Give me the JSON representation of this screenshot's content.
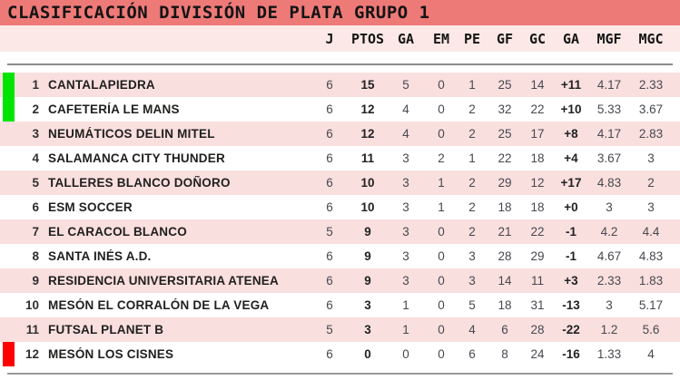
{
  "title": "CLASIFICACIÓN DIVISIÓN DE PLATA GRUPO 1",
  "table": {
    "columns": [
      "J",
      "PTOS",
      "GA",
      "EM",
      "PE",
      "GF",
      "GC",
      "GA",
      "MGF",
      "MGC"
    ],
    "rows": [
      {
        "pos": "1",
        "team": "CANTALAPIEDRA",
        "j": "6",
        "ptos": "15",
        "ga": "5",
        "em": "0",
        "pe": "1",
        "gf": "25",
        "gc": "14",
        "dif": "+11",
        "mgf": "4.17",
        "mgc": "2.33",
        "marker": "green"
      },
      {
        "pos": "2",
        "team": "CAFETERÍA LE MANS",
        "j": "6",
        "ptos": "12",
        "ga": "4",
        "em": "0",
        "pe": "2",
        "gf": "32",
        "gc": "22",
        "dif": "+10",
        "mgf": "5.33",
        "mgc": "3.67",
        "marker": "green"
      },
      {
        "pos": "3",
        "team": "NEUMÁTICOS DELIN MITEL",
        "j": "6",
        "ptos": "12",
        "ga": "4",
        "em": "0",
        "pe": "2",
        "gf": "25",
        "gc": "17",
        "dif": "+8",
        "mgf": "4.17",
        "mgc": "2.83"
      },
      {
        "pos": "4",
        "team": "SALAMANCA CITY THUNDER",
        "j": "6",
        "ptos": "11",
        "ga": "3",
        "em": "2",
        "pe": "1",
        "gf": "22",
        "gc": "18",
        "dif": "+4",
        "mgf": "3.67",
        "mgc": "3"
      },
      {
        "pos": "5",
        "team": "TALLERES BLANCO DOÑORO",
        "j": "6",
        "ptos": "10",
        "ga": "3",
        "em": "1",
        "pe": "2",
        "gf": "29",
        "gc": "12",
        "dif": "+17",
        "mgf": "4.83",
        "mgc": "2"
      },
      {
        "pos": "6",
        "team": "ESM SOCCER",
        "j": "6",
        "ptos": "10",
        "ga": "3",
        "em": "1",
        "pe": "2",
        "gf": "18",
        "gc": "18",
        "dif": "+0",
        "mgf": "3",
        "mgc": "3"
      },
      {
        "pos": "7",
        "team": "EL CARACOL BLANCO",
        "j": "5",
        "ptos": "9",
        "ga": "3",
        "em": "0",
        "pe": "2",
        "gf": "21",
        "gc": "22",
        "dif": "-1",
        "mgf": "4.2",
        "mgc": "4.4"
      },
      {
        "pos": "8",
        "team": "SANTA INÉS A.D.",
        "j": "6",
        "ptos": "9",
        "ga": "3",
        "em": "0",
        "pe": "3",
        "gf": "28",
        "gc": "29",
        "dif": "-1",
        "mgf": "4.67",
        "mgc": "4.83"
      },
      {
        "pos": "9",
        "team": "RESIDENCIA UNIVERSITARIA ATENEA",
        "j": "6",
        "ptos": "9",
        "ga": "3",
        "em": "0",
        "pe": "3",
        "gf": "14",
        "gc": "11",
        "dif": "+3",
        "mgf": "2.33",
        "mgc": "1.83"
      },
      {
        "pos": "10",
        "team": "MESÓN EL CORRALÓN DE LA VEGA",
        "j": "6",
        "ptos": "3",
        "ga": "1",
        "em": "0",
        "pe": "5",
        "gf": "18",
        "gc": "31",
        "dif": "-13",
        "mgf": "3",
        "mgc": "5.17"
      },
      {
        "pos": "11",
        "team": "FUTSAL PLANET B",
        "j": "5",
        "ptos": "3",
        "ga": "1",
        "em": "0",
        "pe": "4",
        "gf": "6",
        "gc": "28",
        "dif": "-22",
        "mgf": "1.2",
        "mgc": "5.6"
      },
      {
        "pos": "12",
        "team": "MESÓN LOS CISNES",
        "j": "6",
        "ptos": "0",
        "ga": "0",
        "em": "0",
        "pe": "6",
        "gf": "8",
        "gc": "24",
        "dif": "-16",
        "mgf": "1.33",
        "mgc": "4",
        "marker": "red"
      }
    ]
  },
  "colors": {
    "title_bar": "#ee7a78",
    "header_band": "#fce9e7",
    "row_pink": "#fadfdf",
    "row_white": "#ffffff",
    "promotion_green": "#00e400",
    "relegation_red": "#ff0000",
    "divider_gray": "#8b8b8b"
  }
}
